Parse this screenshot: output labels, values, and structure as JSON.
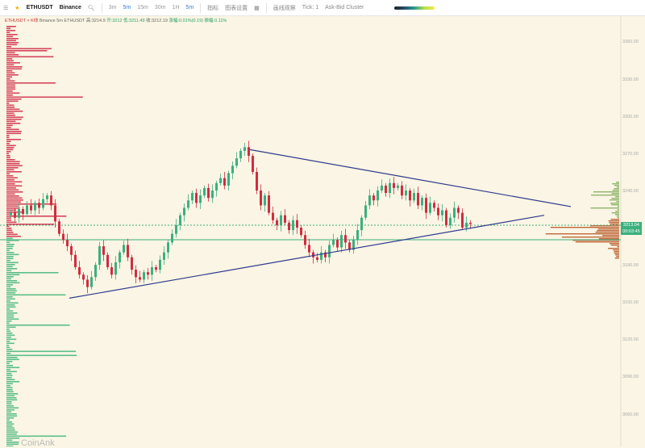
{
  "toolbar": {
    "symbol": "ETHUSDT",
    "exchange": "Binance",
    "timeframes": [
      "3m",
      "5m",
      "15m",
      "30m",
      "1H"
    ],
    "active_timeframe": "5m",
    "selected": "5m",
    "indicators": "指标",
    "chart_settings": "图表设置",
    "drawing": "画线观察",
    "tick": "Tick: 1",
    "cluster": "Ask-Bid Cluster"
  },
  "info": {
    "prefix": "ETHUSDT > K线",
    "desc": "Binance 5m ETHUSDT",
    "high": "高:3214.9",
    "open": "开:3212",
    "low": "低:3211.49",
    "close": "收:3212.19",
    "change": "涨幅:0.01%(0.19)",
    "amplitude": "振幅:0.11%"
  },
  "price_axis": [
    "3360.00",
    "3330.00",
    "3300.00",
    "3270.00",
    "3240.00",
    "3180.00",
    "3150.00",
    "3120.00",
    "3090.00",
    "3060.00"
  ],
  "current_price": "3213.04",
  "countdown": "00:03:45",
  "brand": "CoinAnk",
  "colors": {
    "up": "#3bb07e",
    "down": "#d12c3f",
    "trend": "#2f3b8f",
    "background": "#faf5e4"
  },
  "chart_data": {
    "type": "candlestick",
    "interval": "5m",
    "start_open": 3220,
    "closes": [
      3222,
      3218,
      3225,
      3221,
      3228,
      3224,
      3230,
      3226,
      3233,
      3236,
      3228,
      3215,
      3205,
      3200,
      3195,
      3188,
      3178,
      3172,
      3168,
      3162,
      3170,
      3180,
      3195,
      3188,
      3178,
      3172,
      3182,
      3190,
      3196,
      3186,
      3176,
      3170,
      3168,
      3174,
      3172,
      3178,
      3176,
      3184,
      3190,
      3198,
      3205,
      3212,
      3220,
      3226,
      3232,
      3238,
      3230,
      3236,
      3242,
      3234,
      3240,
      3246,
      3250,
      3244,
      3254,
      3260,
      3266,
      3272,
      3275,
      3268,
      3255,
      3240,
      3228,
      3236,
      3222,
      3216,
      3212,
      3220,
      3214,
      3208,
      3216,
      3210,
      3204,
      3196,
      3190,
      3186,
      3184,
      3190,
      3186,
      3196,
      3200,
      3194,
      3204,
      3198,
      3192,
      3200,
      3208,
      3218,
      3228,
      3236,
      3232,
      3240,
      3244,
      3238,
      3246,
      3242,
      3244,
      3236,
      3240,
      3232,
      3238,
      3228,
      3234,
      3222,
      3230,
      3226,
      3220,
      3224,
      3212,
      3218,
      3226,
      3222,
      3210,
      3214,
      3213
    ],
    "trendlines": [
      {
        "from": 3273,
        "to": 3227
      },
      {
        "from": 3153,
        "to": 3220
      }
    ],
    "ylim": [
      3040,
      3370
    ]
  }
}
